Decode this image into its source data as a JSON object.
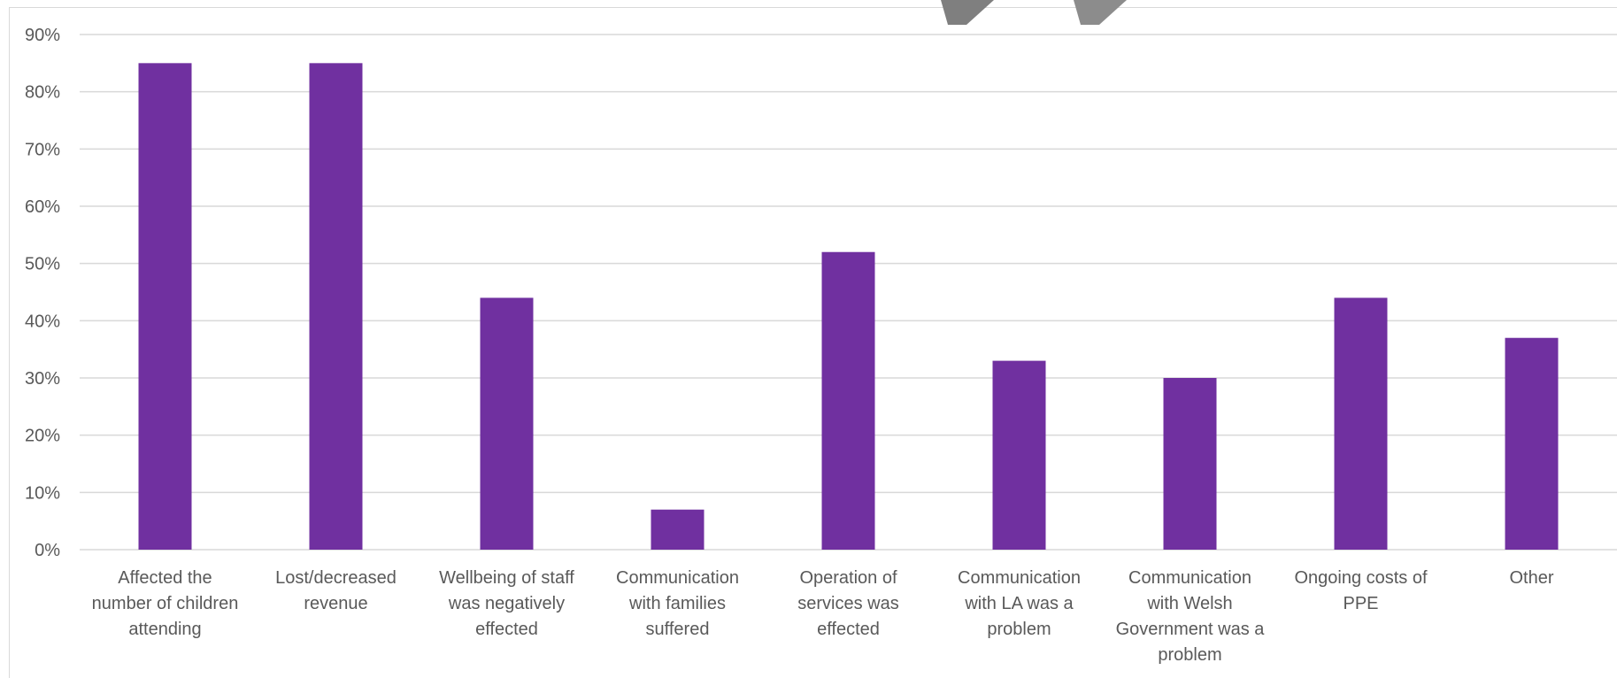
{
  "chart_data": {
    "type": "bar",
    "categories": [
      [
        "Affected the",
        "number of children",
        "attending"
      ],
      [
        "Lost/decreased",
        "revenue"
      ],
      [
        "Wellbeing of staff",
        "was negatively",
        "effected"
      ],
      [
        "Communication",
        "with families",
        "suffered"
      ],
      [
        "Operation of",
        "services was",
        "effected"
      ],
      [
        "Communication",
        "with LA was a",
        "problem"
      ],
      [
        "Communication",
        "with Welsh",
        "Government was a",
        "problem"
      ],
      [
        "Ongoing costs of",
        "PPE"
      ],
      [
        "Other"
      ]
    ],
    "values": [
      85,
      85,
      44,
      7,
      52,
      33,
      30,
      44,
      37
    ],
    "ylim": [
      0,
      90
    ],
    "yticks": [
      "0%",
      "10%",
      "20%",
      "30%",
      "40%",
      "50%",
      "60%",
      "70%",
      "80%",
      "90%"
    ],
    "grid": true,
    "bar_color": "#7030a0",
    "title": "",
    "xlabel": "",
    "ylabel": ""
  }
}
